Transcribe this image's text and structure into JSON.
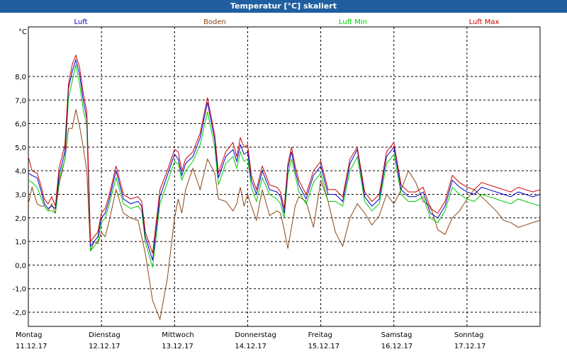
{
  "window": {
    "title": "Temperatur [°C] skaliert"
  },
  "chart_data": {
    "type": "line",
    "title": "Temperatur [°C] skaliert",
    "ylabel": "°C",
    "ylim": [
      -2.6,
      10.1
    ],
    "yticks": [
      "8,0",
      "7,0",
      "6,0",
      "5,0",
      "4,0",
      "3,0",
      "2,0",
      "1,0",
      "0,0",
      "-1,0",
      "-2,0"
    ],
    "ytick_values": [
      8,
      7,
      6,
      5,
      4,
      3,
      2,
      1,
      0,
      -1,
      -2
    ],
    "xlim": [
      0,
      7
    ],
    "days": [
      {
        "day": "Montag",
        "date": "11.12.17",
        "pos": 0
      },
      {
        "day": "Dienstag",
        "date": "12.12.17",
        "pos": 1
      },
      {
        "day": "Mittwoch",
        "date": "13.12.17",
        "pos": 2
      },
      {
        "day": "Donnerstag",
        "date": "14.12.17",
        "pos": 3
      },
      {
        "day": "Freitag",
        "date": "15.12.17",
        "pos": 4
      },
      {
        "day": "Samstag",
        "date": "16.12.17",
        "pos": 5
      },
      {
        "day": "Sonntag",
        "date": "17.12.17",
        "pos": 6
      }
    ],
    "grid": true,
    "legend_placement": "top",
    "series": [
      {
        "name": "Luft",
        "color": "#0000cc",
        "x": [
          0,
          0.05,
          0.12,
          0.17,
          0.22,
          0.27,
          0.32,
          0.37,
          0.42,
          0.5,
          0.55,
          0.6,
          0.65,
          0.7,
          0.75,
          0.8,
          0.85,
          0.9,
          0.95,
          1.0,
          1.05,
          1.1,
          1.2,
          1.3,
          1.4,
          1.5,
          1.55,
          1.6,
          1.7,
          1.8,
          1.9,
          2.0,
          2.05,
          2.1,
          2.15,
          2.25,
          2.35,
          2.45,
          2.55,
          2.6,
          2.7,
          2.8,
          2.85,
          2.9,
          2.95,
          3.0,
          3.05,
          3.12,
          3.2,
          3.3,
          3.4,
          3.45,
          3.5,
          3.55,
          3.6,
          3.65,
          3.7,
          3.8,
          3.9,
          4.0,
          4.1,
          4.2,
          4.3,
          4.4,
          4.5,
          4.6,
          4.7,
          4.8,
          4.9,
          5.0,
          5.1,
          5.2,
          5.3,
          5.4,
          5.5,
          5.6,
          5.7,
          5.8,
          5.9,
          6.0,
          6.1,
          6.2,
          6.3,
          6.4,
          6.5,
          6.6,
          6.7,
          6.8,
          6.9,
          7.0
        ],
        "y": [
          3.9,
          3.8,
          3.7,
          3.2,
          2.6,
          2.4,
          2.5,
          2.4,
          3.8,
          4.8,
          7.5,
          8.2,
          8.7,
          8.1,
          7.0,
          6.2,
          0.8,
          1.0,
          1.2,
          2.0,
          2.2,
          2.7,
          4.0,
          2.8,
          2.6,
          2.7,
          2.5,
          1.2,
          0.2,
          2.9,
          3.8,
          4.7,
          4.5,
          3.8,
          4.3,
          4.6,
          5.4,
          6.9,
          5.3,
          3.7,
          4.6,
          4.9,
          4.4,
          5.1,
          4.7,
          4.8,
          3.6,
          3.0,
          4.0,
          3.2,
          3.1,
          2.9,
          2.2,
          4.1,
          4.8,
          4.0,
          3.4,
          2.8,
          3.8,
          4.2,
          3.0,
          3.0,
          2.7,
          4.3,
          4.9,
          2.9,
          2.5,
          2.8,
          4.6,
          5.0,
          3.2,
          2.9,
          2.9,
          3.1,
          2.2,
          2.0,
          2.5,
          3.6,
          3.3,
          3.1,
          3.0,
          3.3,
          3.2,
          3.1,
          3.0,
          2.9,
          3.1,
          3.0,
          2.9,
          3.0
        ]
      },
      {
        "name": "Boden",
        "color": "#8b4513",
        "x": [
          0,
          0.05,
          0.12,
          0.17,
          0.22,
          0.27,
          0.32,
          0.37,
          0.42,
          0.5,
          0.55,
          0.6,
          0.65,
          0.7,
          0.75,
          0.8,
          0.85,
          0.9,
          0.95,
          1.0,
          1.05,
          1.1,
          1.2,
          1.3,
          1.4,
          1.5,
          1.55,
          1.6,
          1.7,
          1.8,
          1.9,
          2.0,
          2.05,
          2.1,
          2.15,
          2.25,
          2.35,
          2.45,
          2.55,
          2.6,
          2.7,
          2.8,
          2.85,
          2.9,
          2.95,
          3.0,
          3.05,
          3.12,
          3.2,
          3.3,
          3.4,
          3.45,
          3.5,
          3.55,
          3.6,
          3.65,
          3.7,
          3.8,
          3.9,
          4.0,
          4.1,
          4.2,
          4.3,
          4.4,
          4.5,
          4.6,
          4.7,
          4.8,
          4.9,
          5.0,
          5.1,
          5.2,
          5.3,
          5.4,
          5.5,
          5.6,
          5.7,
          5.8,
          5.9,
          6.0,
          6.1,
          6.2,
          6.3,
          6.4,
          6.5,
          6.6,
          6.7,
          6.8,
          6.9,
          7.0
        ],
        "y": [
          2.6,
          3.3,
          2.6,
          2.5,
          2.5,
          2.3,
          2.6,
          2.2,
          3.4,
          4.5,
          5.8,
          5.8,
          6.6,
          5.9,
          5.0,
          4.0,
          0.6,
          1.0,
          0.9,
          1.4,
          1.2,
          1.8,
          3.2,
          2.2,
          2.0,
          1.9,
          1.2,
          0.5,
          -1.5,
          -2.3,
          -0.6,
          2.0,
          2.8,
          2.2,
          3.2,
          4.1,
          3.2,
          4.5,
          3.9,
          2.8,
          2.7,
          2.3,
          2.6,
          3.3,
          2.5,
          3.0,
          2.5,
          1.9,
          3.2,
          2.1,
          2.3,
          2.2,
          1.5,
          0.7,
          1.6,
          2.5,
          2.9,
          2.7,
          1.6,
          3.6,
          2.7,
          1.4,
          0.8,
          2.0,
          2.6,
          2.2,
          1.7,
          2.1,
          3.0,
          2.6,
          3.2,
          4.0,
          3.5,
          2.7,
          2.5,
          1.5,
          1.3,
          2.0,
          2.3,
          2.8,
          3.2,
          2.9,
          2.6,
          2.3,
          1.9,
          1.8,
          1.6,
          1.7,
          1.8,
          1.9
        ]
      },
      {
        "name": "Luft Min",
        "color": "#00cc00",
        "x": [
          0,
          0.05,
          0.12,
          0.17,
          0.22,
          0.27,
          0.32,
          0.37,
          0.42,
          0.5,
          0.55,
          0.6,
          0.65,
          0.7,
          0.75,
          0.8,
          0.85,
          0.9,
          0.95,
          1.0,
          1.05,
          1.1,
          1.2,
          1.3,
          1.4,
          1.5,
          1.55,
          1.6,
          1.7,
          1.8,
          1.9,
          2.0,
          2.05,
          2.1,
          2.15,
          2.25,
          2.35,
          2.45,
          2.55,
          2.6,
          2.7,
          2.8,
          2.85,
          2.9,
          2.95,
          3.0,
          3.05,
          3.12,
          3.2,
          3.3,
          3.4,
          3.45,
          3.5,
          3.55,
          3.6,
          3.65,
          3.7,
          3.8,
          3.9,
          4.0,
          4.1,
          4.2,
          4.3,
          4.4,
          4.5,
          4.6,
          4.7,
          4.8,
          4.9,
          5.0,
          5.1,
          5.2,
          5.3,
          5.4,
          5.5,
          5.6,
          5.7,
          5.8,
          5.9,
          6.0,
          6.1,
          6.2,
          6.3,
          6.4,
          6.5,
          6.6,
          6.7,
          6.8,
          6.9,
          7.0
        ],
        "y": [
          3.6,
          3.5,
          3.3,
          2.9,
          2.5,
          2.3,
          2.3,
          2.2,
          3.6,
          4.5,
          7.1,
          7.8,
          8.5,
          7.7,
          6.6,
          5.9,
          0.6,
          0.8,
          1.0,
          1.8,
          2.0,
          2.5,
          3.7,
          2.6,
          2.4,
          2.5,
          2.3,
          1.0,
          -0.1,
          2.6,
          3.5,
          4.4,
          4.3,
          3.6,
          4.0,
          4.4,
          5.1,
          6.5,
          5.0,
          3.4,
          4.3,
          4.6,
          4.1,
          4.8,
          4.4,
          4.5,
          3.3,
          2.7,
          3.7,
          3.0,
          2.8,
          2.6,
          2.0,
          3.8,
          4.5,
          3.8,
          3.1,
          2.6,
          3.5,
          3.9,
          2.7,
          2.7,
          2.5,
          4.0,
          4.6,
          2.7,
          2.3,
          2.6,
          4.3,
          4.7,
          3.0,
          2.7,
          2.7,
          2.9,
          2.0,
          1.8,
          2.3,
          3.3,
          3.0,
          2.8,
          2.7,
          3.0,
          2.9,
          2.8,
          2.7,
          2.6,
          2.8,
          2.7,
          2.6,
          2.5
        ]
      },
      {
        "name": "Luft Max",
        "color": "#cc0000",
        "x": [
          0,
          0.05,
          0.12,
          0.17,
          0.22,
          0.27,
          0.32,
          0.37,
          0.42,
          0.5,
          0.55,
          0.6,
          0.65,
          0.7,
          0.75,
          0.8,
          0.85,
          0.9,
          0.95,
          1.0,
          1.05,
          1.1,
          1.2,
          1.3,
          1.4,
          1.5,
          1.55,
          1.6,
          1.7,
          1.8,
          1.9,
          2.0,
          2.05,
          2.1,
          2.15,
          2.25,
          2.35,
          2.45,
          2.55,
          2.6,
          2.7,
          2.8,
          2.85,
          2.9,
          2.95,
          3.0,
          3.05,
          3.12,
          3.2,
          3.3,
          3.4,
          3.45,
          3.5,
          3.55,
          3.6,
          3.65,
          3.7,
          3.8,
          3.9,
          4.0,
          4.1,
          4.2,
          4.3,
          4.4,
          4.5,
          4.6,
          4.7,
          4.8,
          4.9,
          5.0,
          5.1,
          5.2,
          5.3,
          5.4,
          5.5,
          5.6,
          5.7,
          5.8,
          5.9,
          6.0,
          6.1,
          6.2,
          6.3,
          6.4,
          6.5,
          6.6,
          6.7,
          6.8,
          6.9,
          7.0
        ],
        "y": [
          4.6,
          4.0,
          3.9,
          3.4,
          2.8,
          2.6,
          2.9,
          2.5,
          4.1,
          5.1,
          7.7,
          8.5,
          8.9,
          8.4,
          7.3,
          6.5,
          1.0,
          1.2,
          1.4,
          2.2,
          2.4,
          2.9,
          4.2,
          3.0,
          2.8,
          2.9,
          2.7,
          1.4,
          0.5,
          3.2,
          4.0,
          4.9,
          4.8,
          4.0,
          4.5,
          4.8,
          5.6,
          7.1,
          5.5,
          3.9,
          4.8,
          5.2,
          4.6,
          5.4,
          5.0,
          5.1,
          3.8,
          3.2,
          4.2,
          3.4,
          3.3,
          3.1,
          2.4,
          4.3,
          5.0,
          4.2,
          3.6,
          3.0,
          4.0,
          4.4,
          3.2,
          3.2,
          2.9,
          4.5,
          5.0,
          3.1,
          2.7,
          3.0,
          4.8,
          5.2,
          3.4,
          3.1,
          3.1,
          3.3,
          2.4,
          2.2,
          2.7,
          3.8,
          3.5,
          3.3,
          3.2,
          3.5,
          3.4,
          3.3,
          3.2,
          3.1,
          3.3,
          3.2,
          3.1,
          3.2
        ]
      }
    ]
  }
}
